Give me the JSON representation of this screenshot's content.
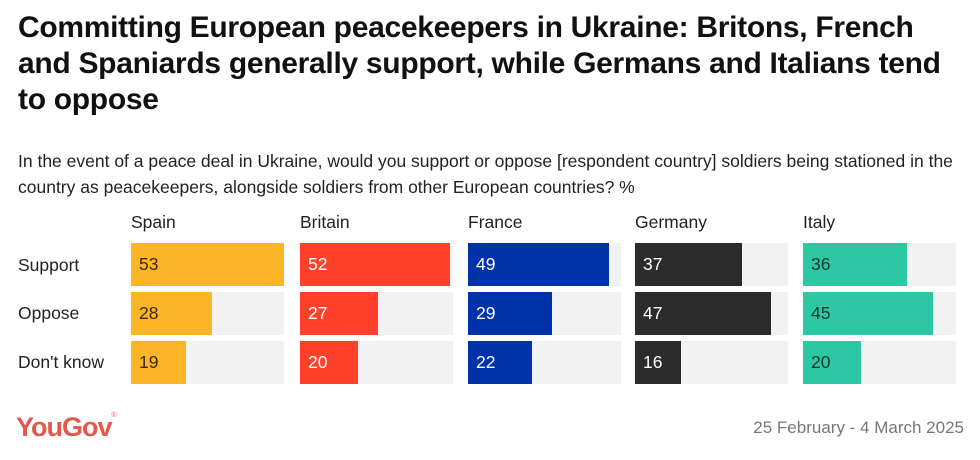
{
  "title": "Committing European peacekeepers in Ukraine: Britons, French and Spaniards generally support, while Germans and Italians tend to oppose",
  "subtitle": "In the event of a peace deal in Ukraine, would you support or oppose [respondent country] soldiers being stationed in the country as peacekeepers, alongside soldiers from other European countries? %",
  "footer": {
    "logo": "YouGov",
    "date": "25 February - 4 March 2025"
  },
  "chart_data": {
    "type": "bar",
    "title": "Committing European peacekeepers in Ukraine",
    "categories": [
      "Support",
      "Oppose",
      "Don't know"
    ],
    "xlim": [
      0,
      53
    ],
    "series": [
      {
        "name": "Spain",
        "color": "#fbb526",
        "label_color": "#3a2a00",
        "values": [
          53,
          28,
          19
        ]
      },
      {
        "name": "Britain",
        "color": "#ff412c",
        "label_color": "#ffffff",
        "values": [
          52,
          27,
          20
        ]
      },
      {
        "name": "France",
        "color": "#0033aa",
        "label_color": "#ffffff",
        "values": [
          49,
          29,
          22
        ]
      },
      {
        "name": "Germany",
        "color": "#2b2b2b",
        "label_color": "#ffffff",
        "values": [
          37,
          47,
          16
        ]
      },
      {
        "name": "Italy",
        "color": "#2ec7a4",
        "label_color": "#0d3a30",
        "values": [
          36,
          45,
          20
        ]
      }
    ]
  }
}
